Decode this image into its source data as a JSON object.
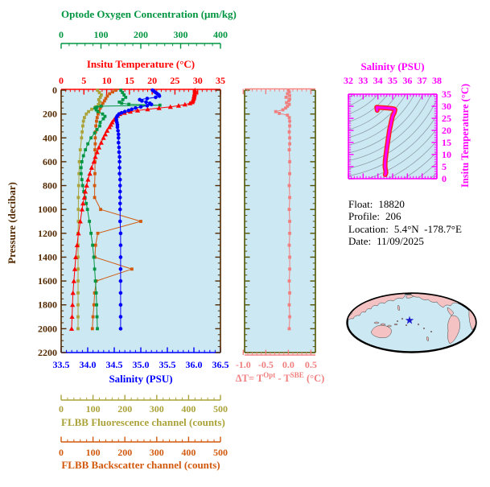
{
  "colors": {
    "background": "#FFFFFF",
    "plot_background": "#CCE8F3",
    "pressure_axis": "#532A00",
    "temperature": "#FF0000",
    "salinity": "#0000FF",
    "oxygen": "#009540",
    "fluorescence": "#ABA33A",
    "backscatter": "#D2590E",
    "delta_t": "#F08080",
    "delta_frame": "#545400",
    "ts_magenta": "#FF00FF",
    "ts_line_under": "#FF2020",
    "contour_gray": "#90A0A8",
    "map_land": "#F4C2C2",
    "map_ocean": "#CCE8F3",
    "map_outline": "#000000",
    "star": "#1D1DCF",
    "info_text": "#000000"
  },
  "info": {
    "lines": [
      {
        "label": "Float:",
        "value": "18820"
      },
      {
        "label": "Profile:",
        "value": "206"
      },
      {
        "label": "Location:",
        "value": "5.4°N  -178.7°E"
      },
      {
        "label": "Date:",
        "value": "11/09/2025"
      }
    ]
  },
  "chart_data": [
    {
      "id": "profile_plot",
      "type": "line",
      "title": "",
      "y_axis": {
        "label": "Pressure (decibar)",
        "lim": [
          0,
          2200
        ],
        "minor_step": 50,
        "color": "#532A00",
        "ticks": [
          "0",
          "200",
          "400",
          "600",
          "800",
          "1000",
          "1200",
          "1400",
          "1600",
          "1800",
          "2000",
          "2200"
        ]
      },
      "x_axes": {
        "oxygen": {
          "label": "Optode Oxygen Concentration (μm/kg)",
          "lim": [
            0,
            400
          ],
          "minor_step": 20,
          "color": "#009540",
          "ticks": [
            "0",
            "100",
            "200",
            "300",
            "400"
          ]
        },
        "temperature": {
          "label": "Insitu Temperature (°C)",
          "lim": [
            0,
            35
          ],
          "minor_step": 1,
          "color": "#FF0000",
          "ticks": [
            "0",
            "5",
            "10",
            "15",
            "20",
            "25",
            "30",
            "35"
          ]
        },
        "salinity": {
          "label": "Salinity (PSU)",
          "lim": [
            33.5,
            36.5
          ],
          "minor_step": 0.1,
          "color": "#0000FF",
          "ticks": [
            "33.5",
            "34.0",
            "34.5",
            "35.0",
            "35.5",
            "36.0",
            "36.5"
          ]
        },
        "fluorescence": {
          "label": "FLBB Fluorescence channel (counts)",
          "lim": [
            0,
            500
          ],
          "minor_step": 20,
          "color": "#ABA33A",
          "ticks": [
            "0",
            "100",
            "200",
            "300",
            "400",
            "500"
          ]
        },
        "backscatter": {
          "label": "FLBB Backscatter channel (counts)",
          "lim": [
            0,
            500
          ],
          "minor_step": 20,
          "color": "#D2590E",
          "ticks": [
            "0",
            "100",
            "200",
            "300",
            "400",
            "500"
          ]
        }
      },
      "series": [
        {
          "name": "fluorescence",
          "axis": "fluorescence",
          "color": "#ABA33A",
          "marker": "square",
          "pressure": [
            0,
            20,
            40,
            60,
            80,
            100,
            120,
            140,
            160,
            180,
            200,
            230,
            260,
            300,
            350,
            400,
            500,
            600,
            700,
            800,
            900,
            1000,
            1100,
            1200,
            1300,
            1400,
            1500,
            1600,
            1700,
            1800,
            1900,
            2000
          ],
          "values": [
            114,
            120,
            126,
            123,
            118,
            121,
            117,
            108,
            96,
            86,
            79,
            73,
            70,
            68,
            66,
            64,
            60,
            57,
            56,
            55,
            54,
            54,
            54,
            53,
            53,
            53,
            53,
            53,
            53,
            53,
            53,
            53
          ]
        },
        {
          "name": "backscatter",
          "axis": "backscatter",
          "color": "#D2590E",
          "marker": "square",
          "pressure": [
            0,
            15,
            30,
            50,
            70,
            90,
            110,
            130,
            150,
            175,
            200,
            230,
            260,
            300,
            350,
            400,
            450,
            500,
            600,
            700,
            800,
            900,
            1000,
            1100,
            1200,
            1300,
            1400,
            1500,
            1600,
            1700,
            1800,
            1900,
            2000
          ],
          "values": [
            172,
            162,
            152,
            145,
            140,
            136,
            131,
            127,
            123,
            119,
            116,
            113,
            111,
            109,
            108,
            107,
            107,
            106,
            106,
            106,
            105,
            105,
            124,
            250,
            115,
            108,
            106,
            222,
            110,
            105,
            103,
            100,
            98
          ]
        },
        {
          "name": "oxygen",
          "axis": "oxygen",
          "color": "#009540",
          "marker": "square",
          "pressure": [
            0,
            20,
            40,
            60,
            80,
            100,
            110,
            118,
            126,
            134,
            142,
            150,
            165,
            180,
            200,
            220,
            240,
            270,
            300,
            330,
            360,
            400,
            450,
            500,
            550,
            600,
            650,
            700,
            750,
            800,
            850,
            900,
            950,
            1000,
            1100,
            1200,
            1300,
            1400,
            1500,
            1600,
            1700,
            1800,
            1900,
            2000
          ],
          "values": [
            150,
            154,
            158,
            162,
            155,
            146,
            152,
            170,
            248,
            100,
            90,
            85,
            88,
            92,
            104,
            110,
            106,
            98,
            97,
            90,
            84,
            75,
            67,
            61,
            56,
            52,
            50,
            50,
            52,
            54,
            57,
            60,
            63,
            66,
            71,
            75,
            79,
            82,
            84,
            86,
            88,
            89,
            90,
            91
          ]
        },
        {
          "name": "temperature",
          "axis": "temperature",
          "color": "#FF0000",
          "marker": "triangle",
          "pressure": [
            0,
            10,
            20,
            30,
            40,
            50,
            60,
            70,
            80,
            90,
            100,
            110,
            120,
            130,
            140,
            150,
            160,
            170,
            180,
            190,
            200,
            215,
            230,
            250,
            270,
            290,
            310,
            340,
            370,
            400,
            440,
            480,
            520,
            560,
            600,
            650,
            700,
            750,
            800,
            850,
            900,
            950,
            1000,
            1100,
            1200,
            1300,
            1400,
            1500,
            1600,
            1700,
            1800,
            1900,
            2000
          ],
          "values": [
            29.4,
            29.4,
            29.4,
            29.3,
            29.3,
            29.2,
            29.2,
            29.1,
            29.0,
            28.9,
            28.8,
            28.3,
            27.2,
            25.8,
            24.0,
            21.5,
            19.0,
            16.8,
            15.2,
            13.9,
            12.9,
            12.4,
            12.0,
            11.6,
            11.2,
            10.9,
            10.6,
            10.1,
            9.7,
            9.3,
            8.8,
            8.3,
            7.9,
            7.5,
            7.2,
            6.7,
            6.3,
            5.9,
            5.6,
            5.3,
            5.1,
            4.8,
            4.6,
            4.2,
            3.8,
            3.5,
            3.2,
            3.0,
            2.8,
            2.6,
            2.5,
            2.4,
            2.3
          ]
        },
        {
          "name": "salinity",
          "axis": "salinity",
          "color": "#0000FF",
          "marker": "circle",
          "pressure": [
            0,
            10,
            20,
            30,
            40,
            50,
            60,
            70,
            80,
            90,
            100,
            110,
            120,
            130,
            140,
            150,
            160,
            170,
            180,
            190,
            200,
            215,
            230,
            250,
            270,
            290,
            310,
            340,
            370,
            400,
            440,
            480,
            520,
            560,
            600,
            650,
            700,
            750,
            800,
            850,
            900,
            950,
            1000,
            1100,
            1200,
            1300,
            1400,
            1500,
            1600,
            1700,
            1800,
            1900,
            2000
          ],
          "values": [
            35.22,
            35.25,
            35.28,
            35.31,
            35.34,
            35.35,
            35.28,
            35.12,
            34.98,
            35.02,
            35.1,
            35.17,
            35.2,
            35.12,
            35.0,
            34.9,
            34.83,
            34.77,
            34.7,
            34.64,
            34.59,
            34.56,
            34.54,
            34.54,
            34.55,
            34.56,
            34.56,
            34.57,
            34.58,
            34.58,
            34.58,
            34.59,
            34.59,
            34.6,
            34.6,
            34.6,
            34.6,
            34.61,
            34.61,
            34.61,
            34.61,
            34.61,
            34.61,
            34.61,
            34.62,
            34.62,
            34.62,
            34.62,
            34.62,
            34.62,
            34.62,
            34.62,
            34.62
          ]
        }
      ]
    },
    {
      "id": "delta_t_plot",
      "type": "line",
      "x_axis": {
        "label_parts": {
          "pre": "ΔT= T",
          "sup1": "Opt",
          "mid": " - T",
          "sup2": "SBE",
          "post": " (°C)"
        },
        "lim": [
          -1.0,
          0.5
        ],
        "minor_step": 0.1,
        "color": "#F08080",
        "ticks": [
          "-1.0",
          "-0.5",
          "0.0",
          "0.5"
        ]
      },
      "frame_color": "#545400",
      "series": [
        {
          "name": "delta_t",
          "color": "#F08080",
          "marker": "square",
          "pressure": [
            0,
            15,
            30,
            45,
            60,
            75,
            90,
            105,
            120,
            135,
            150,
            165,
            180,
            195,
            210,
            230,
            260,
            300,
            350,
            400,
            450,
            500,
            600,
            700,
            800,
            900,
            1000,
            1100,
            1200,
            1300,
            1400,
            1500,
            1600,
            1700,
            1800,
            1900,
            2000
          ],
          "values": [
            0.0,
            0.02,
            -0.02,
            0.03,
            -0.05,
            0.03,
            0.01,
            -0.04,
            0.02,
            -0.02,
            -0.06,
            -0.12,
            -0.28,
            -0.2,
            -0.02,
            0.02,
            0.03,
            0.03,
            0.02,
            0.03,
            0.03,
            0.02,
            0.03,
            0.03,
            0.02,
            0.03,
            0.02,
            0.03,
            0.03,
            0.02,
            0.03,
            0.03,
            0.02,
            0.03,
            0.02,
            0.03,
            0.02
          ]
        }
      ]
    },
    {
      "id": "ts_plot",
      "type": "line",
      "x_axis": {
        "label": "Salinity (PSU)",
        "lim": [
          32,
          38
        ],
        "minor_step": 0.2,
        "color": "#FF00FF",
        "ticks": [
          "32",
          "33",
          "34",
          "35",
          "36",
          "37",
          "38"
        ]
      },
      "y_axis": {
        "label": "Insitu Temperature (°C)",
        "lim": [
          0,
          35
        ],
        "minor_step": 1,
        "color": "#FF00FF",
        "ticks": [
          "0",
          "5",
          "10",
          "15",
          "20",
          "25",
          "30",
          "35"
        ]
      },
      "series": [
        {
          "name": "ts_curve",
          "color": "#FF00FF",
          "salinity": [
            33.95,
            33.92,
            34.05,
            34.3,
            34.6,
            34.9,
            35.1,
            35.16,
            35.12,
            35.0,
            34.92,
            34.85,
            34.78,
            34.72,
            34.66,
            34.6,
            34.55,
            34.5,
            34.48,
            34.52,
            34.55,
            34.5
          ],
          "temperature": [
            28.3,
            29.6,
            29.5,
            29.4,
            29.3,
            29.1,
            28.9,
            28.6,
            27.5,
            26.0,
            24.0,
            22.0,
            20.0,
            17.5,
            15.0,
            12.5,
            10.0,
            7.5,
            5.0,
            3.5,
            2.5,
            1.7
          ]
        }
      ]
    }
  ]
}
